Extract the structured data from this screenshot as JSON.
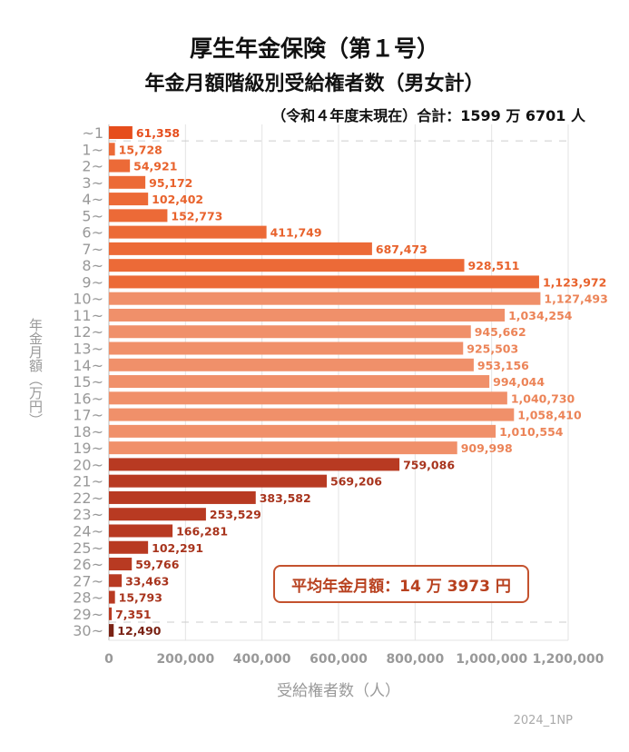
{
  "chart_data": {
    "type": "bar",
    "orientation": "horizontal",
    "title": "厚生年金保険（第１号）",
    "subtitle": "年金月額階級別受給権者数（男女計）",
    "note": "（令和４年度末現在）合計：1599 万 6701 人",
    "xlabel": "受給権者数（人）",
    "ylabel": "年金月額（万円）",
    "xlim": [
      0,
      1200000
    ],
    "xticks": [
      "0",
      "200,000",
      "400,000",
      "600,000",
      "800,000",
      "1,000,000",
      "1,200,000"
    ],
    "categories": [
      "~1",
      "1~",
      "2~",
      "3~",
      "4~",
      "5~",
      "6~",
      "7~",
      "8~",
      "9~",
      "10~",
      "11~",
      "12~",
      "13~",
      "14~",
      "15~",
      "16~",
      "17~",
      "18~",
      "19~",
      "20~",
      "21~",
      "22~",
      "23~",
      "24~",
      "25~",
      "26~",
      "27~",
      "28~",
      "29~",
      "30~"
    ],
    "values": [
      61358,
      15728,
      54921,
      95172,
      102402,
      152773,
      411749,
      687473,
      928511,
      1123972,
      1127493,
      1034254,
      945662,
      925503,
      953156,
      994044,
      1040730,
      1058410,
      1010554,
      909998,
      759086,
      569206,
      383582,
      253529,
      166281,
      102291,
      59766,
      33463,
      15793,
      7351,
      12490
    ],
    "value_labels": [
      "61,358",
      "15,728",
      "54,921",
      "95,172",
      "102,402",
      "152,773",
      "411,749",
      "687,473",
      "928,511",
      "1,123,972",
      "1,127,493",
      "1,034,254",
      "945,662",
      "925,503",
      "953,156",
      "994,044",
      "1,040,730",
      "1,058,410",
      "1,010,554",
      "909,998",
      "759,086",
      "569,206",
      "383,582",
      "253,529",
      "166,281",
      "102,291",
      "59,766",
      "33,463",
      "15,793",
      "7,351",
      "12,490"
    ],
    "annotation": "平均年金月額：14 万 3973 円",
    "grid": true,
    "colors": {
      "first": "#e64d1c",
      "low": "#ec6a37",
      "mid": "#f0906a",
      "high": "#b83a22",
      "last": "#7a2214"
    }
  },
  "credit": "2024_1NP"
}
